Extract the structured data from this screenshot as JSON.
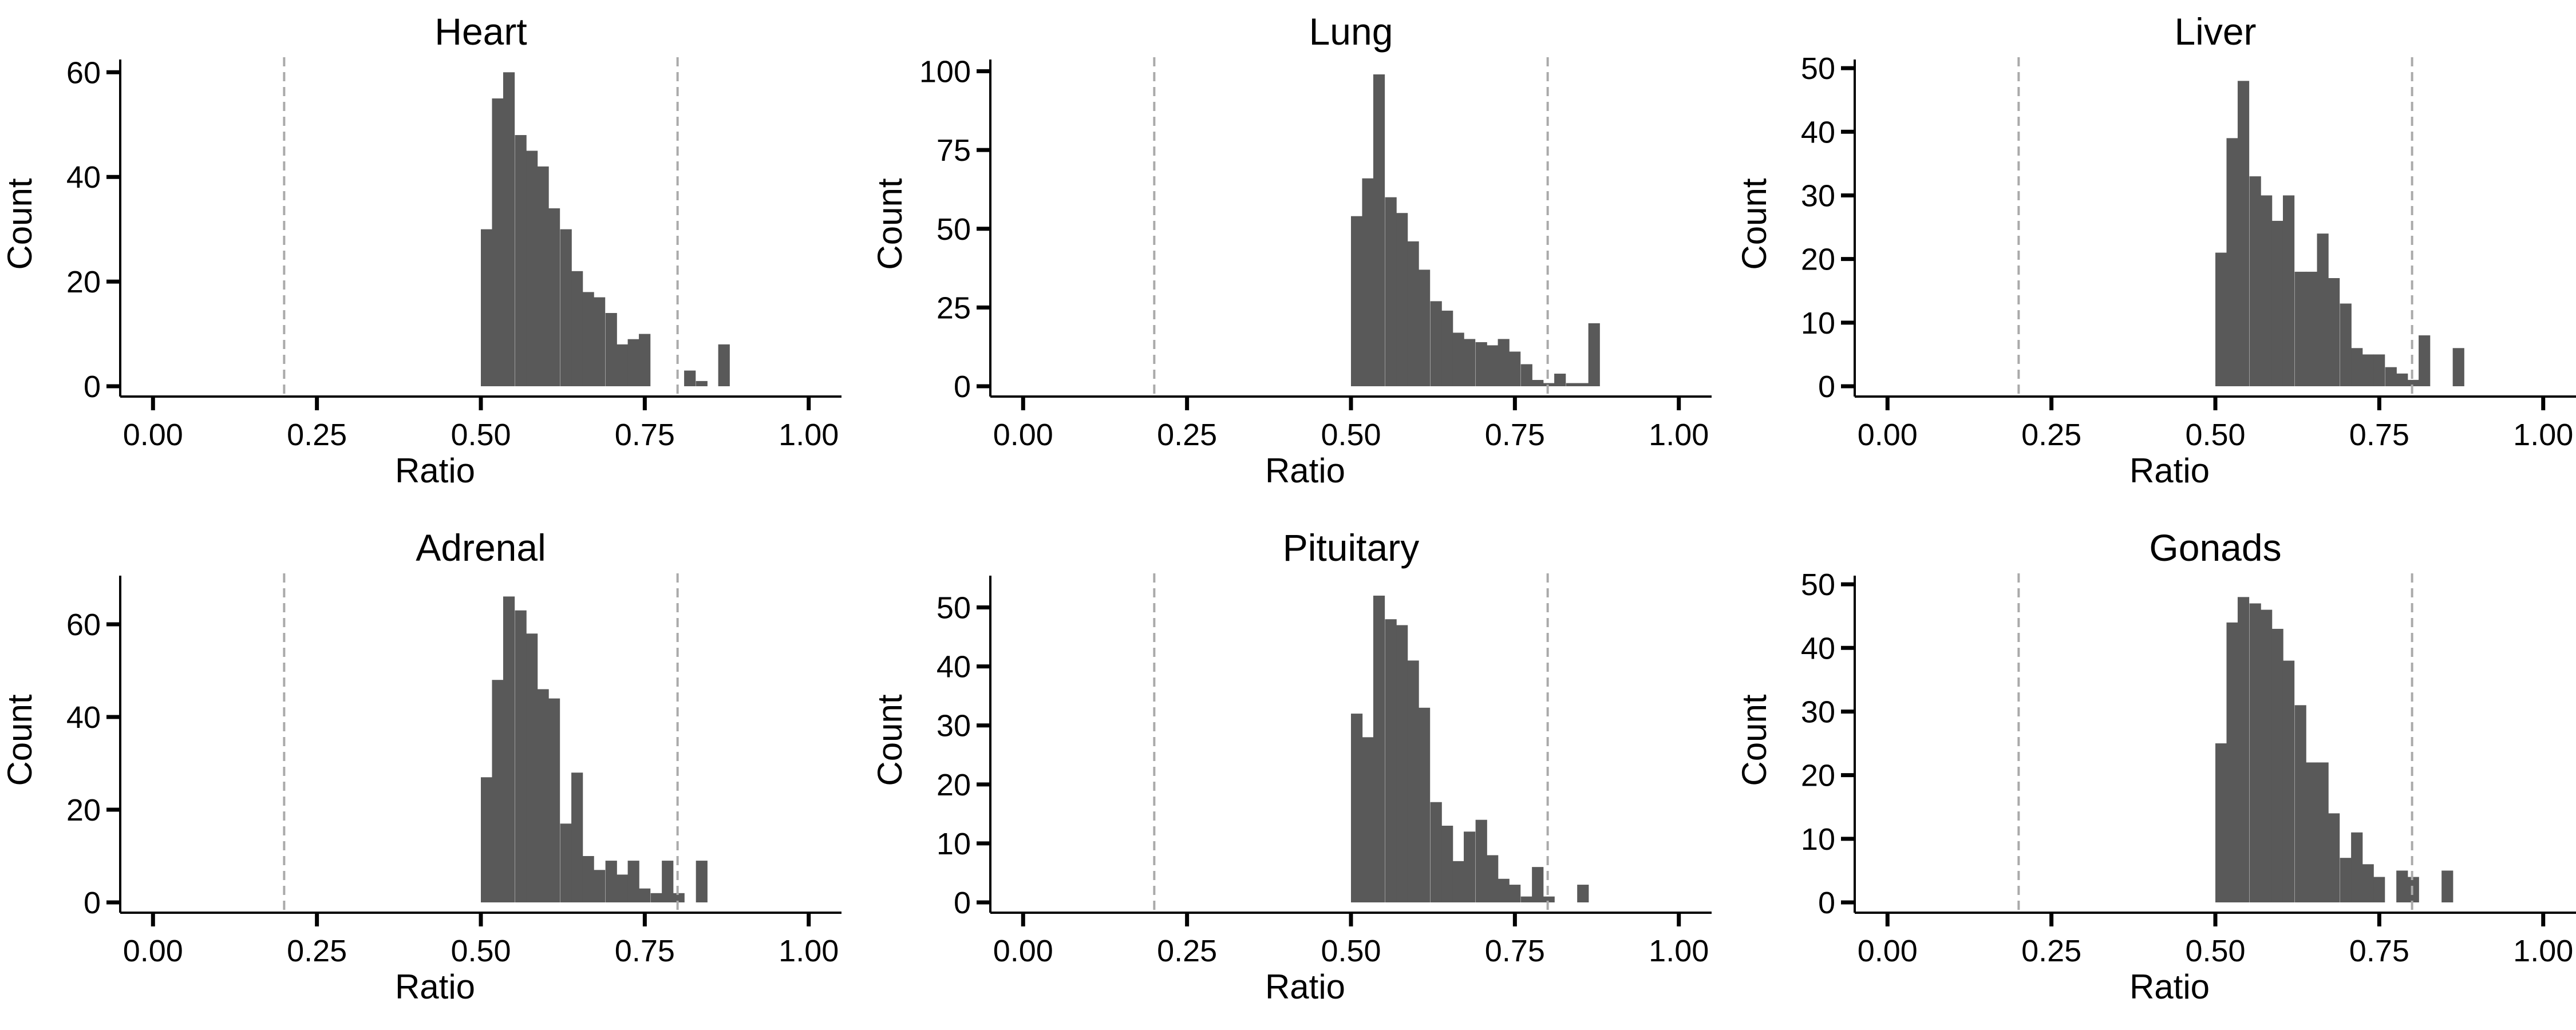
{
  "chart_data": [
    {
      "type": "histogram",
      "title": "Heart",
      "xlabel": "Ratio",
      "ylabel": "Count",
      "xlim": [
        0.0,
        1.0
      ],
      "ylim": [
        0,
        62
      ],
      "xticks": [
        "0.00",
        "0.25",
        "0.50",
        "0.75",
        "1.00"
      ],
      "yticks": [
        0,
        20,
        40,
        60
      ],
      "reference_lines_x": [
        0.2,
        0.8
      ],
      "bin_width": 0.0172,
      "bins": [
        {
          "x": 0.5,
          "count": 30
        },
        {
          "x": 0.517,
          "count": 55
        },
        {
          "x": 0.534,
          "count": 60
        },
        {
          "x": 0.552,
          "count": 48
        },
        {
          "x": 0.569,
          "count": 45
        },
        {
          "x": 0.586,
          "count": 42
        },
        {
          "x": 0.603,
          "count": 34
        },
        {
          "x": 0.621,
          "count": 30
        },
        {
          "x": 0.638,
          "count": 22
        },
        {
          "x": 0.655,
          "count": 18
        },
        {
          "x": 0.672,
          "count": 17
        },
        {
          "x": 0.69,
          "count": 14
        },
        {
          "x": 0.707,
          "count": 8
        },
        {
          "x": 0.724,
          "count": 9
        },
        {
          "x": 0.741,
          "count": 10
        },
        {
          "x": 0.81,
          "count": 3
        },
        {
          "x": 0.828,
          "count": 1
        },
        {
          "x": 0.862,
          "count": 8
        }
      ]
    },
    {
      "type": "histogram",
      "title": "Lung",
      "xlabel": "Ratio",
      "ylabel": "Count",
      "xlim": [
        0.0,
        1.0
      ],
      "ylim": [
        0,
        103
      ],
      "xticks": [
        "0.00",
        "0.25",
        "0.50",
        "0.75",
        "1.00"
      ],
      "yticks": [
        0,
        25,
        50,
        75,
        100
      ],
      "reference_lines_x": [
        0.2,
        0.8
      ],
      "bin_width": 0.0172,
      "bins": [
        {
          "x": 0.5,
          "count": 54
        },
        {
          "x": 0.517,
          "count": 66
        },
        {
          "x": 0.534,
          "count": 99
        },
        {
          "x": 0.552,
          "count": 60
        },
        {
          "x": 0.569,
          "count": 55
        },
        {
          "x": 0.586,
          "count": 46
        },
        {
          "x": 0.603,
          "count": 37
        },
        {
          "x": 0.621,
          "count": 27
        },
        {
          "x": 0.638,
          "count": 24
        },
        {
          "x": 0.655,
          "count": 17
        },
        {
          "x": 0.672,
          "count": 15
        },
        {
          "x": 0.69,
          "count": 14
        },
        {
          "x": 0.707,
          "count": 13
        },
        {
          "x": 0.724,
          "count": 15
        },
        {
          "x": 0.741,
          "count": 11
        },
        {
          "x": 0.759,
          "count": 7
        },
        {
          "x": 0.776,
          "count": 2
        },
        {
          "x": 0.793,
          "count": 1
        },
        {
          "x": 0.81,
          "count": 4
        },
        {
          "x": 0.828,
          "count": 1
        },
        {
          "x": 0.845,
          "count": 1
        },
        {
          "x": 0.862,
          "count": 20
        }
      ]
    },
    {
      "type": "histogram",
      "title": "Liver",
      "xlabel": "Ratio",
      "ylabel": "Count",
      "xlim": [
        0.0,
        1.0
      ],
      "ylim": [
        0,
        51
      ],
      "xticks": [
        "0.00",
        "0.25",
        "0.50",
        "0.75",
        "1.00"
      ],
      "yticks": [
        0,
        10,
        20,
        30,
        40,
        50
      ],
      "reference_lines_x": [
        0.2,
        0.8
      ],
      "bin_width": 0.0172,
      "bins": [
        {
          "x": 0.5,
          "count": 21
        },
        {
          "x": 0.517,
          "count": 39
        },
        {
          "x": 0.534,
          "count": 48
        },
        {
          "x": 0.552,
          "count": 33
        },
        {
          "x": 0.569,
          "count": 30
        },
        {
          "x": 0.586,
          "count": 26
        },
        {
          "x": 0.603,
          "count": 30
        },
        {
          "x": 0.621,
          "count": 18
        },
        {
          "x": 0.638,
          "count": 18
        },
        {
          "x": 0.655,
          "count": 24
        },
        {
          "x": 0.672,
          "count": 17
        },
        {
          "x": 0.69,
          "count": 13
        },
        {
          "x": 0.707,
          "count": 6
        },
        {
          "x": 0.724,
          "count": 5
        },
        {
          "x": 0.741,
          "count": 5
        },
        {
          "x": 0.759,
          "count": 3
        },
        {
          "x": 0.776,
          "count": 2
        },
        {
          "x": 0.793,
          "count": 1
        },
        {
          "x": 0.81,
          "count": 8
        },
        {
          "x": 0.862,
          "count": 6
        }
      ]
    },
    {
      "type": "histogram",
      "title": "Adrenal",
      "xlabel": "Ratio",
      "ylabel": "Count",
      "xlim": [
        0.0,
        1.0
      ],
      "ylim": [
        0,
        70
      ],
      "xticks": [
        "0.00",
        "0.25",
        "0.50",
        "0.75",
        "1.00"
      ],
      "yticks": [
        0,
        20,
        40,
        60
      ],
      "reference_lines_x": [
        0.2,
        0.8
      ],
      "bin_width": 0.0172,
      "bins": [
        {
          "x": 0.5,
          "count": 27
        },
        {
          "x": 0.517,
          "count": 48
        },
        {
          "x": 0.534,
          "count": 66
        },
        {
          "x": 0.552,
          "count": 63
        },
        {
          "x": 0.569,
          "count": 58
        },
        {
          "x": 0.586,
          "count": 46
        },
        {
          "x": 0.603,
          "count": 44
        },
        {
          "x": 0.621,
          "count": 17
        },
        {
          "x": 0.638,
          "count": 28
        },
        {
          "x": 0.655,
          "count": 10
        },
        {
          "x": 0.672,
          "count": 7
        },
        {
          "x": 0.69,
          "count": 9
        },
        {
          "x": 0.707,
          "count": 6
        },
        {
          "x": 0.724,
          "count": 9
        },
        {
          "x": 0.741,
          "count": 3
        },
        {
          "x": 0.759,
          "count": 2
        },
        {
          "x": 0.776,
          "count": 9
        },
        {
          "x": 0.793,
          "count": 2
        },
        {
          "x": 0.828,
          "count": 9
        }
      ]
    },
    {
      "type": "histogram",
      "title": "Pituitary",
      "xlabel": "Ratio",
      "ylabel": "Count",
      "xlim": [
        0.0,
        1.0
      ],
      "ylim": [
        0,
        55
      ],
      "xticks": [
        "0.00",
        "0.25",
        "0.50",
        "0.75",
        "1.00"
      ],
      "yticks": [
        0,
        10,
        20,
        30,
        40,
        50
      ],
      "reference_lines_x": [
        0.2,
        0.8
      ],
      "bin_width": 0.0172,
      "bins": [
        {
          "x": 0.5,
          "count": 32
        },
        {
          "x": 0.517,
          "count": 28
        },
        {
          "x": 0.534,
          "count": 52
        },
        {
          "x": 0.552,
          "count": 48
        },
        {
          "x": 0.569,
          "count": 47
        },
        {
          "x": 0.586,
          "count": 41
        },
        {
          "x": 0.603,
          "count": 33
        },
        {
          "x": 0.621,
          "count": 17
        },
        {
          "x": 0.638,
          "count": 13
        },
        {
          "x": 0.655,
          "count": 7
        },
        {
          "x": 0.672,
          "count": 12
        },
        {
          "x": 0.69,
          "count": 14
        },
        {
          "x": 0.707,
          "count": 8
        },
        {
          "x": 0.724,
          "count": 4
        },
        {
          "x": 0.741,
          "count": 3
        },
        {
          "x": 0.759,
          "count": 1
        },
        {
          "x": 0.776,
          "count": 6
        },
        {
          "x": 0.793,
          "count": 1
        },
        {
          "x": 0.845,
          "count": 3
        }
      ]
    },
    {
      "type": "histogram",
      "title": "Gonads",
      "xlabel": "Ratio",
      "ylabel": "Count",
      "xlim": [
        0.0,
        1.0
      ],
      "ylim": [
        0,
        51
      ],
      "xticks": [
        "0.00",
        "0.25",
        "0.50",
        "0.75",
        "1.00"
      ],
      "yticks": [
        0,
        10,
        20,
        30,
        40,
        50
      ],
      "reference_lines_x": [
        0.2,
        0.8
      ],
      "bin_width": 0.0172,
      "bins": [
        {
          "x": 0.5,
          "count": 25
        },
        {
          "x": 0.517,
          "count": 44
        },
        {
          "x": 0.534,
          "count": 48
        },
        {
          "x": 0.552,
          "count": 47
        },
        {
          "x": 0.569,
          "count": 46
        },
        {
          "x": 0.586,
          "count": 43
        },
        {
          "x": 0.603,
          "count": 38
        },
        {
          "x": 0.621,
          "count": 31
        },
        {
          "x": 0.638,
          "count": 22
        },
        {
          "x": 0.655,
          "count": 22
        },
        {
          "x": 0.672,
          "count": 14
        },
        {
          "x": 0.69,
          "count": 7
        },
        {
          "x": 0.707,
          "count": 11
        },
        {
          "x": 0.724,
          "count": 6
        },
        {
          "x": 0.741,
          "count": 4
        },
        {
          "x": 0.776,
          "count": 5
        },
        {
          "x": 0.793,
          "count": 4
        },
        {
          "x": 0.845,
          "count": 5
        }
      ]
    }
  ],
  "colors": {
    "bar": "#595959",
    "axis": "#000000",
    "reference_line": "#aaaaaa"
  }
}
